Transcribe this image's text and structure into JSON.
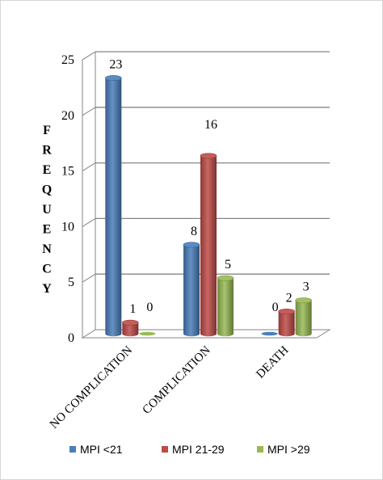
{
  "chart_data": {
    "type": "bar",
    "ylabel": "FREQUENCY",
    "xlabel": "",
    "title": "",
    "ylim": [
      0,
      25
    ],
    "yticks": [
      0,
      5,
      10,
      15,
      20,
      25
    ],
    "categories": [
      "NO COMPLICATION",
      "COMPLICATION",
      "DEATH"
    ],
    "series": [
      {
        "name": "MPI <21",
        "values": [
          23,
          8,
          0
        ],
        "color": "#4a7ebb"
      },
      {
        "name": "MPI 21-29",
        "values": [
          1,
          16,
          2
        ],
        "color": "#be4b48"
      },
      {
        "name": "MPI >29",
        "values": [
          0,
          5,
          3
        ],
        "color": "#98b954"
      }
    ],
    "data_labels": true,
    "grid": true,
    "legend_position": "bottom",
    "style": "3d-cylinder"
  }
}
